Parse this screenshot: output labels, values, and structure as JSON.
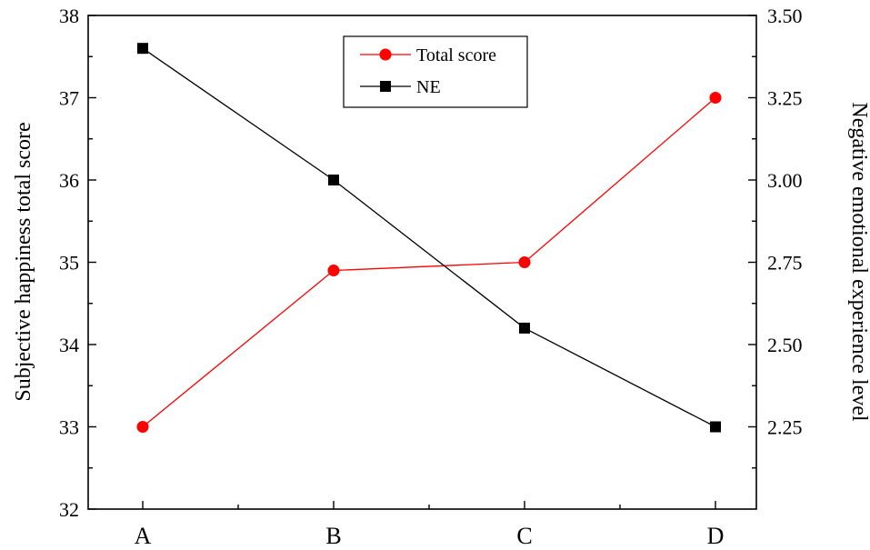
{
  "chart_data": {
    "type": "line",
    "categories": [
      "A",
      "B",
      "C",
      "D"
    ],
    "ylabel": "Subjective happiness total score",
    "ylabel_right": "Negative emotional experience level",
    "ylim": [
      32,
      38
    ],
    "ylim_right": [
      2.0,
      3.5
    ],
    "yticks": [
      "32",
      "33",
      "34",
      "35",
      "36",
      "37",
      "38"
    ],
    "yticks_right": [
      "2.25",
      "2.50",
      "2.75",
      "3.00",
      "3.25",
      "3.50"
    ],
    "legend_position": "top-center",
    "grid": false,
    "series": [
      {
        "name": "Total score",
        "axis": "left",
        "color": "#ff0000",
        "marker": "circle",
        "values": [
          33.0,
          34.9,
          35.0,
          37.0
        ]
      },
      {
        "name": "NE",
        "axis": "right",
        "color": "#000000",
        "marker": "square",
        "values": [
          3.4,
          3.0,
          2.55,
          2.25
        ]
      }
    ]
  }
}
